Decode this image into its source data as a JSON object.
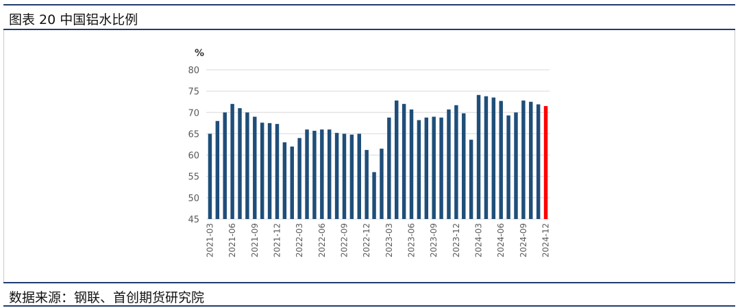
{
  "header": {
    "title": "图表 20 中国铝水比例"
  },
  "footer": {
    "source": "数据来源：钢联、首创期货研究院"
  },
  "colors": {
    "bar": "#1f4e79",
    "highlight": "#ff0000",
    "grid": "#d9d9d9",
    "axis_text": "#595959"
  },
  "chart_data": {
    "type": "bar",
    "ylabel": "%",
    "ylim": [
      45,
      80
    ],
    "yticks": [
      45,
      50,
      55,
      60,
      65,
      70,
      75,
      80
    ],
    "grid": true,
    "highlight_last": true,
    "tick_labels": [
      "2021-03",
      "2021-06",
      "2021-09",
      "2021-12",
      "2022-03",
      "2022-06",
      "2022-09",
      "2022-12",
      "2023-03",
      "2023-06",
      "2023-09",
      "2023-12",
      "2024-03",
      "2024-06",
      "2024-09",
      "2024-12"
    ],
    "categories": [
      "2021-03",
      "2021-04",
      "2021-05",
      "2021-06",
      "2021-07",
      "2021-08",
      "2021-09",
      "2021-10",
      "2021-11",
      "2021-12",
      "2022-01",
      "2022-02",
      "2022-03",
      "2022-04",
      "2022-05",
      "2022-06",
      "2022-07",
      "2022-08",
      "2022-09",
      "2022-10",
      "2022-11",
      "2022-12",
      "2023-01",
      "2023-02",
      "2023-03",
      "2023-04",
      "2023-05",
      "2023-06",
      "2023-07",
      "2023-08",
      "2023-09",
      "2023-10",
      "2023-11",
      "2023-12",
      "2024-01",
      "2024-02",
      "2024-03",
      "2024-04",
      "2024-05",
      "2024-06",
      "2024-07",
      "2024-08",
      "2024-09",
      "2024-10",
      "2024-11",
      "2024-12"
    ],
    "values": [
      65.0,
      68.0,
      70.0,
      72.0,
      71.0,
      70.0,
      69.0,
      67.6,
      67.5,
      67.3,
      63.0,
      62.0,
      64.0,
      66.0,
      65.7,
      66.0,
      66.0,
      65.2,
      65.0,
      64.8,
      65.0,
      61.2,
      56.0,
      61.5,
      68.8,
      72.8,
      72.0,
      70.7,
      68.2,
      68.8,
      69.0,
      68.8,
      70.7,
      71.7,
      69.8,
      63.6,
      74.1,
      73.8,
      73.5,
      72.7,
      69.3,
      70.0,
      72.8,
      72.5,
      71.9,
      71.5
    ]
  }
}
